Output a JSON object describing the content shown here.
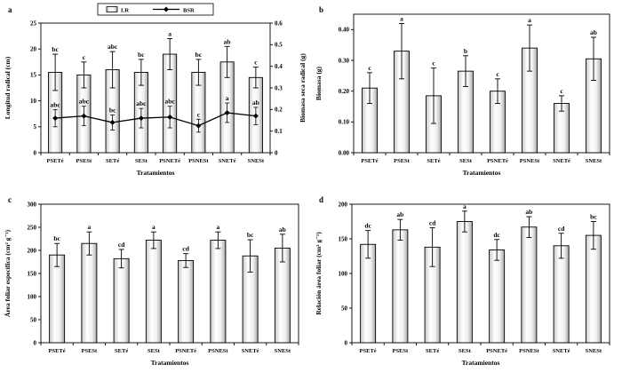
{
  "figure_title": "",
  "chart_data": [
    {
      "id": "a",
      "panel_label": "a",
      "type": "bar+line",
      "categories": [
        "PSETé",
        "PSESt",
        "SETé",
        "SESt",
        "PSNETé",
        "PSNESt",
        "SNETé",
        "SNESt"
      ],
      "xlabel": "Tratamientos",
      "left_axis": {
        "label": "Longitud radical (cm)",
        "max": 25,
        "ticks": [
          "0",
          "5",
          "10",
          "15",
          "20",
          "25"
        ]
      },
      "right_axis": {
        "label": "Biomasa seca radical (g)",
        "max": 0.6,
        "ticks": [
          "0",
          "0.1",
          "0.2",
          "0.3",
          "0.4",
          "0.5",
          "0.6"
        ]
      },
      "legend": {
        "bar_label": "LR",
        "line_label": "BSR"
      },
      "bars": {
        "name": "LR",
        "values": [
          15.5,
          15.0,
          16.0,
          15.5,
          19.0,
          15.5,
          17.5,
          14.5
        ],
        "errors": [
          3.5,
          2.5,
          3.5,
          2.5,
          3.0,
          2.5,
          3.0,
          2.0
        ],
        "letters": [
          "bc",
          "c",
          "abc",
          "bc",
          "a",
          "bc",
          "ab",
          "c"
        ]
      },
      "line": {
        "name": "BSR",
        "values": [
          0.16,
          0.17,
          0.14,
          0.16,
          0.165,
          0.125,
          0.185,
          0.17
        ],
        "errors": [
          0.04,
          0.045,
          0.035,
          0.045,
          0.05,
          0.03,
          0.045,
          0.04
        ],
        "letters": [
          "abc",
          "abc",
          "bc",
          "abc",
          "abc",
          "c",
          "a",
          "ab"
        ]
      }
    },
    {
      "id": "b",
      "panel_label": "b",
      "type": "bar",
      "categories": [
        "PSETé",
        "PSESt",
        "SETé",
        "SESt",
        "PSNETé",
        "PSNESt",
        "SNETé",
        "SNESt"
      ],
      "xlabel": "Tratamientos",
      "left_axis": {
        "label": "Biomasa (g)",
        "max": 0.45,
        "ticks": [
          "0.00",
          "0.10",
          "0.20",
          "0.30",
          "0.40"
        ]
      },
      "bars": {
        "name": "Biomasa",
        "values": [
          0.21,
          0.33,
          0.185,
          0.265,
          0.2,
          0.34,
          0.16,
          0.305
        ],
        "errors": [
          0.05,
          0.09,
          0.09,
          0.05,
          0.04,
          0.075,
          0.025,
          0.07
        ],
        "letters": [
          "c",
          "a",
          "c",
          "b",
          "c",
          "a",
          "c",
          "ab"
        ]
      }
    },
    {
      "id": "c",
      "panel_label": "c",
      "type": "bar",
      "categories": [
        "PSETé",
        "PSESt",
        "SETé",
        "SESt",
        "PSNETé",
        "PSNESt",
        "SNETé",
        "SNESt"
      ],
      "xlabel": "Tratamientos",
      "left_axis": {
        "label": "Área foliar específica (cm² g⁻¹)",
        "max": 300,
        "ticks": [
          "0",
          "50",
          "100",
          "150",
          "200",
          "250",
          "300"
        ]
      },
      "bars": {
        "name": "Área foliar específica",
        "values": [
          190,
          215,
          182,
          222,
          178,
          222,
          188,
          205
        ],
        "errors": [
          25,
          25,
          20,
          18,
          15,
          18,
          35,
          30
        ],
        "letters": [
          "bc",
          "a",
          "cd",
          "a",
          "cd",
          "a",
          "bc",
          "ab"
        ]
      }
    },
    {
      "id": "d",
      "panel_label": "d",
      "type": "bar",
      "categories": [
        "PSETé",
        "PSESt",
        "SETé",
        "SESt",
        "PSNETé",
        "PSNESt",
        "SNETé",
        "SNESt"
      ],
      "xlabel": "Tratamientos",
      "left_axis": {
        "label": "Relación área foliar (cm² g⁻¹)",
        "max": 200,
        "ticks": [
          "0",
          "50",
          "100",
          "150",
          "200"
        ]
      },
      "bars": {
        "name": "Relación área foliar",
        "values": [
          142,
          163,
          138,
          175,
          134,
          167,
          140,
          155
        ],
        "errors": [
          20,
          15,
          28,
          15,
          15,
          15,
          18,
          20
        ],
        "letters": [
          "dc",
          "ab",
          "cd",
          "a",
          "dc",
          "ab",
          "cd",
          "bc"
        ]
      }
    }
  ]
}
